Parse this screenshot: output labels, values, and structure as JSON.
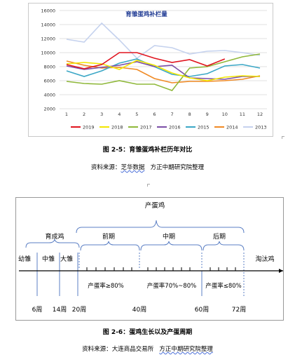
{
  "figure1": {
    "chart_title": "育雏蛋鸡补栏量",
    "caption": "图 2-5：育雏蛋鸡补栏历年对比",
    "source_prefix": "资料来源：",
    "source_org": "芝华数据",
    "source_suffix": "方正中期研究院整理"
  },
  "chart_data": {
    "type": "line",
    "title": "育雏蛋鸡补栏量",
    "x": [
      1,
      2,
      3,
      4,
      5,
      6,
      7,
      8,
      9,
      10,
      11,
      12
    ],
    "ylim": [
      2000,
      16000
    ],
    "yticks": [
      2000,
      4000,
      6000,
      8000,
      10000,
      12000,
      14000,
      16000
    ],
    "grid": true,
    "legend_position": "bottom",
    "series": [
      {
        "name": "2019",
        "color": "#e0141e",
        "values": [
          8300,
          7700,
          8300,
          10000,
          10000,
          9200,
          8600,
          9000,
          8100,
          9100,
          null,
          null
        ]
      },
      {
        "name": "2018",
        "color": "#f2e600",
        "values": [
          8400,
          8600,
          8400,
          7600,
          8900,
          8200,
          7100,
          6400,
          6000,
          6500,
          6700,
          6600
        ]
      },
      {
        "name": "2017",
        "color": "#8fb83a",
        "values": [
          5900,
          5600,
          5500,
          6000,
          5500,
          5500,
          4600,
          7800,
          8000,
          8700,
          9400,
          9800
        ]
      },
      {
        "name": "2016",
        "color": "#7b4ea6",
        "values": [
          8100,
          7600,
          7900,
          8200,
          8700,
          8000,
          8200,
          6400,
          6300,
          6200,
          6600,
          6600
        ]
      },
      {
        "name": "2015",
        "color": "#3ba7c6",
        "values": [
          7400,
          6600,
          7400,
          8500,
          9100,
          8000,
          6900,
          6600,
          7000,
          8100,
          8300,
          7800
        ]
      },
      {
        "name": "2014",
        "color": "#f08a24",
        "values": [
          8800,
          8200,
          7800,
          7900,
          7600,
          6300,
          5700,
          5900,
          5900,
          6000,
          6200,
          6700
        ]
      },
      {
        "name": "2013",
        "color": "#c5d2ee",
        "values": [
          11900,
          11500,
          14200,
          11800,
          9200,
          11000,
          10700,
          9800,
          10200,
          10300,
          10000,
          9600
        ]
      }
    ]
  },
  "figure2": {
    "caption": "图 2-6：蛋鸡生长以及产蛋周期",
    "source_prefix": "资料来源：",
    "source_org": "大连商品交易所",
    "source_suffix": "方正中期研究院整理",
    "labels": {
      "laying_hen": "产蛋鸡",
      "rearing": "育成鸡",
      "early": "前期",
      "middle": "中期",
      "late": "后期",
      "chick": "幼雏",
      "medium": "中雏",
      "large": "大雏",
      "cull": "淘汰鸡",
      "rate_early": "产蛋率≥80%",
      "rate_middle": "产蛋率70%~80%",
      "rate_late": "产蛋率≤80%"
    },
    "weeks": [
      "6周",
      "14周",
      "20周",
      "40周",
      "60周",
      "72周"
    ]
  }
}
